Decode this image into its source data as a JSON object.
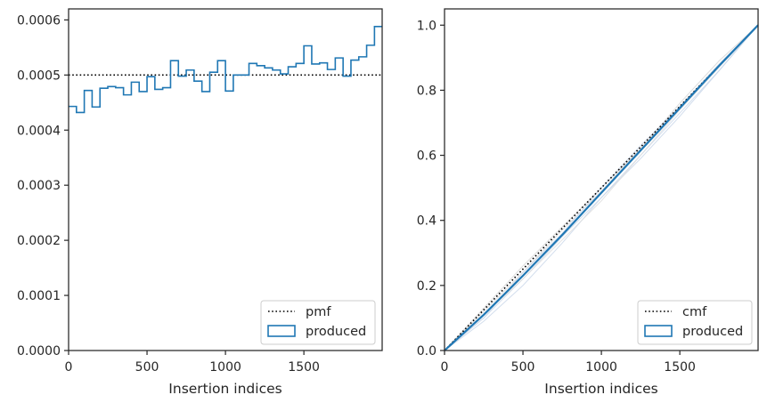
{
  "chart_data": [
    {
      "type": "step",
      "xlabel": "Insertion indices",
      "ylabel": "",
      "xlim": [
        0,
        1999
      ],
      "ylim": [
        0,
        0.00062
      ],
      "x_ticks": [
        0,
        500,
        1000,
        1500
      ],
      "x_tick_labels": [
        "0",
        "500",
        "1000",
        "1500"
      ],
      "y_ticks": [
        0,
        0.0001,
        0.0002,
        0.0003,
        0.0004,
        0.0005,
        0.0006
      ],
      "y_tick_labels": [
        "0.0000",
        "0.0001",
        "0.0002",
        "0.0003",
        "0.0004",
        "0.0005",
        "0.0006"
      ],
      "grid": false,
      "legend_position": "lower-right",
      "series": [
        {
          "name": "pmf",
          "style": "dotted",
          "color": "#000000",
          "x": [
            0,
            1999
          ],
          "values": [
            0.0005,
            0.0005
          ]
        },
        {
          "name": "produced",
          "style": "step",
          "color": "#1f77b4",
          "bin_width": 50,
          "values": [
            0.000443,
            0.000432,
            0.000472,
            0.000442,
            0.000476,
            0.000479,
            0.000477,
            0.000464,
            0.000487,
            0.00047,
            0.000497,
            0.000474,
            0.000477,
            0.000526,
            0.000498,
            0.000509,
            0.000489,
            0.00047,
            0.000505,
            0.000526,
            0.000471,
            0.0005,
            0.0005,
            0.000521,
            0.000517,
            0.000513,
            0.000509,
            0.000502,
            0.000515,
            0.000521,
            0.000553,
            0.00052,
            0.000522,
            0.00051,
            0.000531,
            0.000498,
            0.000527,
            0.000533,
            0.000554,
            0.000588
          ]
        }
      ]
    },
    {
      "type": "line",
      "xlabel": "Insertion indices",
      "ylabel": "",
      "xlim": [
        0,
        1999
      ],
      "ylim": [
        0,
        1.05
      ],
      "x_ticks": [
        0,
        500,
        1000,
        1500
      ],
      "x_tick_labels": [
        "0",
        "500",
        "1000",
        "1500"
      ],
      "y_ticks": [
        0,
        0.2,
        0.4,
        0.6,
        0.8,
        1.0
      ],
      "y_tick_labels": [
        "0.0",
        "0.2",
        "0.4",
        "0.6",
        "0.8",
        "1.0"
      ],
      "grid": false,
      "legend_position": "lower-right",
      "series": [
        {
          "name": "cmf",
          "style": "dotted",
          "color": "#000000",
          "x": [
            0,
            1999
          ],
          "values": [
            0,
            1
          ]
        },
        {
          "name": "produced",
          "style": "line",
          "color": "#1f77b4",
          "x": [
            0,
            250,
            500,
            750,
            1000,
            1250,
            1500,
            1750,
            1999
          ],
          "values": [
            0,
            0.11,
            0.23,
            0.355,
            0.485,
            0.615,
            0.745,
            0.875,
            1.0
          ]
        }
      ],
      "background_samples": [
        {
          "color": "#c8d6e8",
          "x": [
            0,
            250,
            500,
            750,
            1000,
            1250,
            1500,
            1750,
            1999
          ],
          "values": [
            0,
            0.09,
            0.2,
            0.33,
            0.47,
            0.6,
            0.73,
            0.86,
            1.0
          ]
        },
        {
          "color": "#d3d3d3",
          "x": [
            0,
            250,
            500,
            750,
            1000,
            1250,
            1500,
            1750,
            1999
          ],
          "values": [
            0,
            0.13,
            0.26,
            0.38,
            0.5,
            0.62,
            0.75,
            0.88,
            1.0
          ]
        },
        {
          "color": "#c8d6e8",
          "x": [
            0,
            250,
            500,
            750,
            1000,
            1250,
            1500,
            1750,
            1999
          ],
          "values": [
            0,
            0.1,
            0.22,
            0.35,
            0.47,
            0.59,
            0.72,
            0.86,
            1.0
          ]
        },
        {
          "color": "#d3d3d3",
          "x": [
            0,
            250,
            500,
            750,
            1000,
            1250,
            1500,
            1750,
            1999
          ],
          "values": [
            0,
            0.12,
            0.24,
            0.37,
            0.49,
            0.62,
            0.76,
            0.89,
            1.0
          ]
        },
        {
          "color": "#dcdcdc",
          "x": [
            0,
            250,
            500,
            750,
            1000,
            1250,
            1500,
            1750,
            1999
          ],
          "values": [
            0,
            0.11,
            0.22,
            0.34,
            0.46,
            0.6,
            0.74,
            0.87,
            1.0
          ]
        },
        {
          "color": "#c8d6e8",
          "x": [
            0,
            250,
            500,
            750,
            1000,
            1250,
            1500,
            1750,
            1999
          ],
          "values": [
            0,
            0.1,
            0.24,
            0.36,
            0.5,
            0.63,
            0.75,
            0.88,
            1.0
          ]
        }
      ]
    }
  ]
}
